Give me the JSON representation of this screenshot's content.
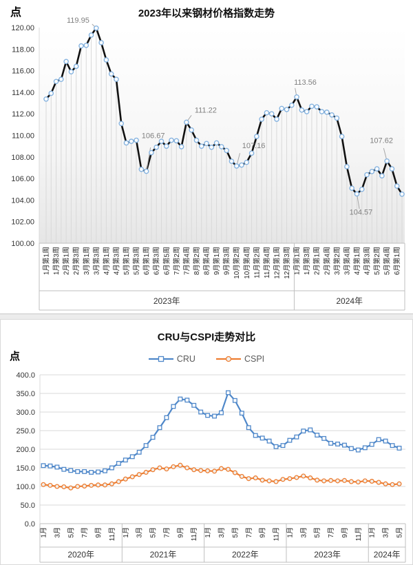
{
  "chart_data": [
    {
      "type": "line",
      "title": "2023年以来钢材价格指数走势",
      "ylabel": "点",
      "xlabel": "",
      "ylim": [
        100,
        120
      ],
      "ytick_step": 2,
      "ytick_labels": [
        "120.00",
        "118.00",
        "116.00",
        "114.00",
        "112.00",
        "110.00",
        "108.00",
        "106.00",
        "104.00",
        "102.00",
        "100.00"
      ],
      "grid": false,
      "line_color": "#111111",
      "marker": {
        "shape": "circle",
        "fill": "#ffffff",
        "stroke": "#85b3e0"
      },
      "dropline_color": "#d9d9d9",
      "x_tick_every": 2,
      "x_tick_labels": [
        "1月第1周",
        "1月第3周",
        "2月第1周",
        "2月第3周",
        "3月第1周",
        "3月第3周",
        "4月第1周",
        "4月第3周",
        "5月第1周",
        "5月第3周",
        "6月第1周",
        "6月第3周",
        "6月第5周",
        "7月第2周",
        "7月第4周",
        "8月第2周",
        "8月第4周",
        "9月第1周",
        "9月第3周",
        "10月第2周",
        "10月第4周",
        "11月第2周",
        "11月第4周",
        "12月第1周",
        "12月第3周",
        "1月第1周",
        "1月第3周",
        "2月第1周",
        "2月第4周",
        "3月第2周",
        "3月第4周",
        "4月第1周",
        "4月第3周",
        "5月第2周",
        "5月第4周",
        "6月第1周"
      ],
      "year_groups": [
        {
          "label": "2023年",
          "count": 50
        },
        {
          "label": "2024年",
          "count": 22
        }
      ],
      "values": [
        113.37,
        113.9,
        115.0,
        115.2,
        116.85,
        115.9,
        116.4,
        118.3,
        118.35,
        119.3,
        119.95,
        118.6,
        117.0,
        115.7,
        115.2,
        111.1,
        109.3,
        109.45,
        109.55,
        106.85,
        106.67,
        108.4,
        108.9,
        109.45,
        109.0,
        109.55,
        109.5,
        108.95,
        111.22,
        110.5,
        109.55,
        109.0,
        109.25,
        108.9,
        109.3,
        108.95,
        108.6,
        107.6,
        107.16,
        107.25,
        107.5,
        108.35,
        109.9,
        111.5,
        112.1,
        112.0,
        111.5,
        112.5,
        112.4,
        112.8,
        113.56,
        112.35,
        112.2,
        112.7,
        112.65,
        112.2,
        112.15,
        111.9,
        111.6,
        109.9,
        107.1,
        105.1,
        104.57,
        105.0,
        106.35,
        106.65,
        106.9,
        106.25,
        107.62,
        106.9,
        105.3,
        104.55
      ],
      "callouts": [
        {
          "index": 10,
          "text": "119.95",
          "tx": -10,
          "ty": -8,
          "anchor": "end"
        },
        {
          "index": 20,
          "text": "106.67",
          "tx": 10,
          "ty": -48,
          "anchor": "middle"
        },
        {
          "index": 28,
          "text": "111.22",
          "tx": 12,
          "ty": -14,
          "anchor": "start"
        },
        {
          "index": 38,
          "text": "107.16",
          "tx": 8,
          "ty": -26,
          "anchor": "start"
        },
        {
          "index": 50,
          "text": "113.56",
          "tx": -4,
          "ty": -18,
          "anchor": "start"
        },
        {
          "index": 62,
          "text": "104.57",
          "tx": 6,
          "ty": 30,
          "anchor": "middle"
        },
        {
          "index": 68,
          "text": "107.62",
          "tx": -8,
          "ty": -26,
          "anchor": "middle"
        }
      ]
    },
    {
      "type": "line",
      "title": "CRU与CSPI走势对比",
      "ylabel": "点",
      "xlabel": "",
      "ylim": [
        0,
        400
      ],
      "ytick_step": 50,
      "ytick_labels": [
        "400.0",
        "350.0",
        "300.0",
        "250.0",
        "200.0",
        "150.0",
        "100.0",
        "50.0",
        "0.0"
      ],
      "grid": true,
      "grid_color": "#d9d9d9",
      "legend_position": "top",
      "x_tick_every": 2,
      "x_tick_labels": [
        "1月",
        "3月",
        "5月",
        "7月",
        "9月",
        "11月",
        "1月",
        "3月",
        "5月",
        "7月",
        "9月",
        "11月",
        "1月",
        "3月",
        "5月",
        "7月",
        "9月",
        "11月",
        "1月",
        "3月",
        "5月",
        "7月",
        "9月",
        "11月",
        "1月",
        "3月",
        "5月"
      ],
      "year_groups": [
        {
          "label": "2020年",
          "count": 12
        },
        {
          "label": "2021年",
          "count": 12
        },
        {
          "label": "2022年",
          "count": 12
        },
        {
          "label": "2023年",
          "count": 12
        },
        {
          "label": "2024年",
          "count": 5
        }
      ],
      "series": [
        {
          "name": "CRU",
          "color": "#4e87c9",
          "marker": "square",
          "marker_fill": "#ffffff",
          "values": [
            156,
            155,
            152,
            146,
            143,
            140,
            140,
            138,
            139,
            142,
            150,
            162,
            171,
            180,
            192,
            210,
            232,
            258,
            285,
            315,
            335,
            332,
            318,
            300,
            291,
            289,
            298,
            352,
            331,
            297,
            258,
            237,
            230,
            222,
            207,
            210,
            224,
            233,
            249,
            252,
            238,
            229,
            216,
            214,
            211,
            202,
            198,
            204,
            213,
            226,
            222,
            210,
            203
          ]
        },
        {
          "name": "CSPI",
          "color": "#ed7d31",
          "marker": "circle",
          "marker_fill": "#f1efec",
          "values": [
            105,
            103,
            100,
            99,
            96,
            100,
            101,
            103,
            104,
            104,
            107,
            113,
            120,
            126,
            132,
            138,
            145,
            150,
            147,
            153,
            157,
            150,
            145,
            143,
            142,
            141,
            148,
            146,
            137,
            127,
            121,
            123,
            117,
            115,
            113,
            119,
            121,
            124,
            128,
            123,
            117,
            115,
            116,
            115,
            116,
            113,
            112,
            115,
            114,
            111,
            107,
            105,
            107
          ]
        }
      ]
    }
  ]
}
